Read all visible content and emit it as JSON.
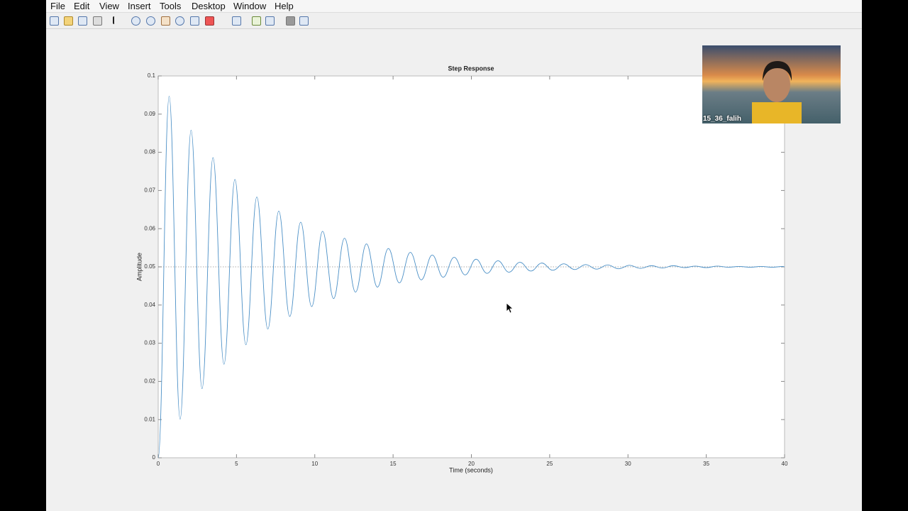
{
  "menu": [
    "File",
    "Edit",
    "View",
    "Insert",
    "Tools",
    "Desktop",
    "Window",
    "Help"
  ],
  "video_overlay": {
    "name": "15_36_falih"
  },
  "chart_data": {
    "type": "line",
    "title": "Step Response",
    "x_label": "Time (seconds)",
    "y_label": "Amplitude",
    "color": "#4a8fc6",
    "x": [
      0,
      0.7,
      1.4,
      2.1,
      2.8,
      3.5,
      4.2,
      4.9,
      5.6,
      6.3,
      7.0,
      7.7,
      8.4,
      9.1,
      9.8,
      10.5,
      11.2,
      11.9,
      12.6,
      13.3,
      14.0,
      14.7,
      15.4,
      16.1,
      16.8,
      17.5,
      18.2,
      18.9,
      19.6,
      20.3,
      21.0,
      21.7,
      22.4,
      23.1,
      23.8,
      24.5,
      25.2,
      25.9,
      26.6,
      27.3,
      28.0,
      28.7,
      29.4,
      30.1,
      30.8,
      31.5,
      32.2,
      32.9,
      33.6,
      34.3,
      35.0,
      35.7,
      36.4,
      37.1,
      37.8,
      38.5,
      39.2,
      39.9,
      40
    ],
    "values": [
      0,
      0.0947,
      0.0101,
      0.0858,
      0.0181,
      0.0786,
      0.0245,
      0.0729,
      0.0296,
      0.0683,
      0.0337,
      0.0646,
      0.037,
      0.0617,
      0.0396,
      0.0593,
      0.0417,
      0.0575,
      0.0434,
      0.056,
      0.0447,
      0.0548,
      0.0458,
      0.0538,
      0.0466,
      0.0531,
      0.0473,
      0.0525,
      0.0479,
      0.052,
      0.0483,
      0.0516,
      0.0486,
      0.0512,
      0.0489,
      0.051,
      0.0491,
      0.0508,
      0.0493,
      0.0506,
      0.0494,
      0.0505,
      0.0495,
      0.0504,
      0.0496,
      0.0503,
      0.0497,
      0.0503,
      0.0498,
      0.0502,
      0.0498,
      0.0502,
      0.0499,
      0.0501,
      0.0499,
      0.0501,
      0.0499,
      0.0501,
      0.05
    ],
    "reference_line": 0.05,
    "xlim": [
      0,
      40
    ],
    "xticks": [
      0,
      5,
      10,
      15,
      20,
      25,
      30,
      35,
      40
    ],
    "ylim": [
      0,
      0.1
    ],
    "yticks": [
      0,
      0.01,
      0.02,
      0.03,
      0.04,
      0.05,
      0.06,
      0.07,
      0.08,
      0.09,
      0.1
    ],
    "grid": false
  }
}
